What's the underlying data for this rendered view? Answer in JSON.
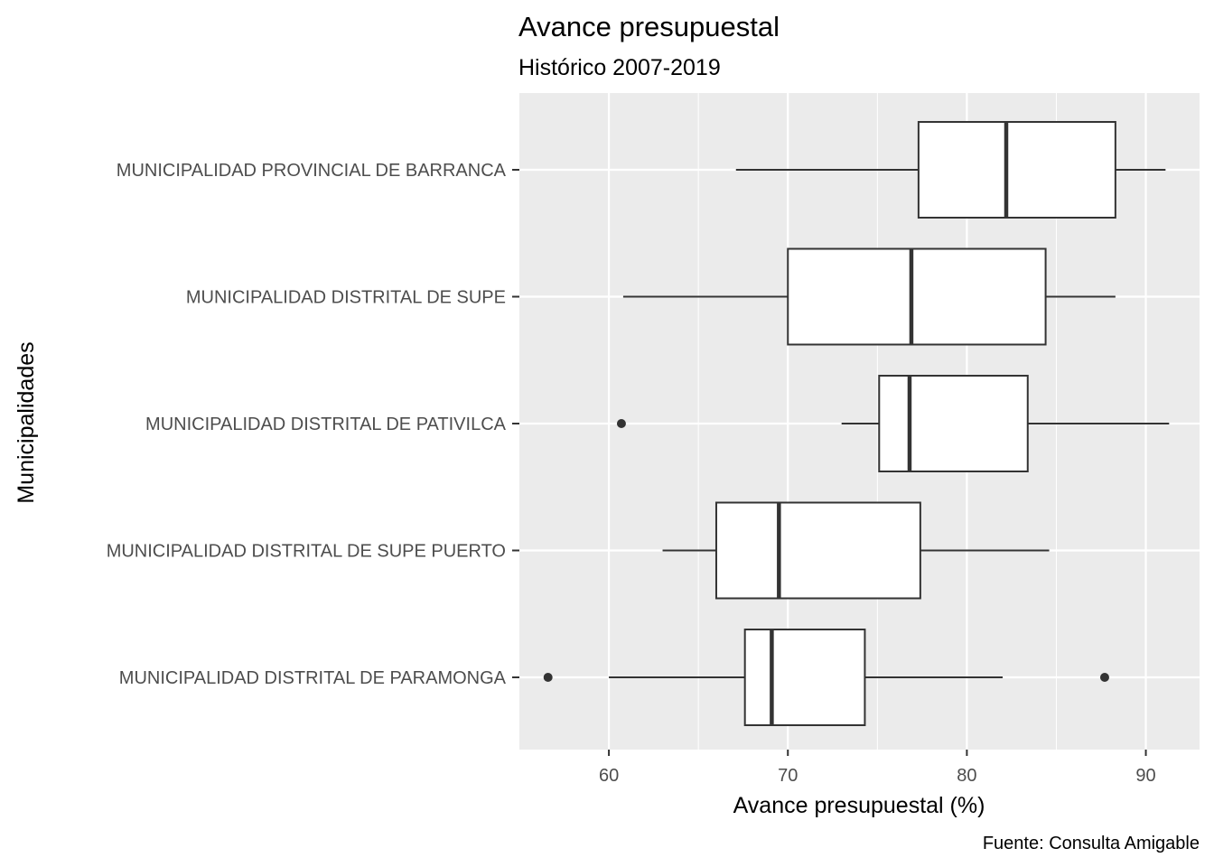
{
  "chart_data": {
    "type": "boxplot",
    "orientation": "horizontal",
    "title": "Avance presupuestal",
    "subtitle": "Histórico 2007-2019",
    "xlabel": "Avance presupuestal (%)",
    "ylabel": "Municipalidades",
    "caption": "Fuente: Consulta Amigable",
    "xlim": [
      55.0,
      93.0
    ],
    "xticks": [
      60,
      70,
      80,
      90
    ],
    "grid": true,
    "colors": {
      "panel": "#ebebeb",
      "grid_major": "#ffffff",
      "box_fill": "#ffffff",
      "box_line": "#333333",
      "outlier": "#333333"
    },
    "categories": [
      "MUNICIPALIDAD PROVINCIAL DE BARRANCA",
      "MUNICIPALIDAD DISTRITAL DE SUPE",
      "MUNICIPALIDAD DISTRITAL DE PATIVILCA",
      "MUNICIPALIDAD DISTRITAL DE SUPE PUERTO",
      "MUNICIPALIDAD DISTRITAL DE PARAMONGA"
    ],
    "boxes": [
      {
        "label": "MUNICIPALIDAD PROVINCIAL DE BARRANCA",
        "whisker_low": 67.1,
        "q1": 77.3,
        "median": 82.2,
        "q3": 88.3,
        "whisker_high": 91.1,
        "outliers": []
      },
      {
        "label": "MUNICIPALIDAD DISTRITAL DE SUPE",
        "whisker_low": 60.8,
        "q1": 70.0,
        "median": 76.9,
        "q3": 84.4,
        "whisker_high": 88.3,
        "outliers": []
      },
      {
        "label": "MUNICIPALIDAD DISTRITAL DE PATIVILCA",
        "whisker_low": 73.0,
        "q1": 75.1,
        "median": 76.8,
        "q3": 83.4,
        "whisker_high": 91.3,
        "outliers": [
          60.7
        ]
      },
      {
        "label": "MUNICIPALIDAD DISTRITAL DE SUPE PUERTO",
        "whisker_low": 63.0,
        "q1": 66.0,
        "median": 69.5,
        "q3": 77.4,
        "whisker_high": 84.6,
        "outliers": []
      },
      {
        "label": "MUNICIPALIDAD DISTRITAL DE PARAMONGA",
        "whisker_low": 60.0,
        "q1": 67.6,
        "median": 69.1,
        "q3": 74.3,
        "whisker_high": 82.0,
        "outliers": [
          56.6,
          87.7
        ]
      }
    ]
  }
}
